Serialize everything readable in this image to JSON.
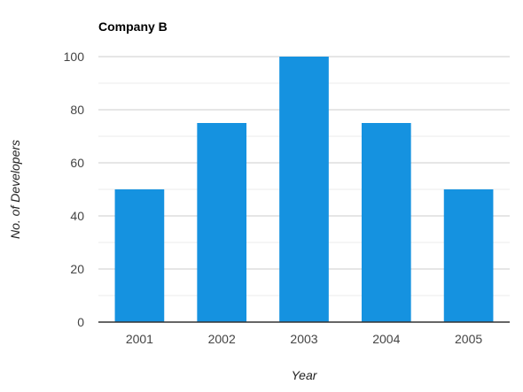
{
  "chart_data": {
    "type": "bar",
    "title": "Company B",
    "xlabel": "Year",
    "ylabel": "No. of Developers",
    "categories": [
      "2001",
      "2002",
      "2003",
      "2004",
      "2005"
    ],
    "values": [
      50,
      75,
      100,
      75,
      50
    ],
    "ylim": [
      0,
      100
    ],
    "yticks": [
      0,
      20,
      40,
      60,
      80,
      100
    ],
    "grid": true,
    "minor_grid": true,
    "legend": "none",
    "bar_color": "#1592e0",
    "grid_color": "#cccccc",
    "minor_grid_color": "#ebebeb",
    "axis_color": "#333333"
  }
}
